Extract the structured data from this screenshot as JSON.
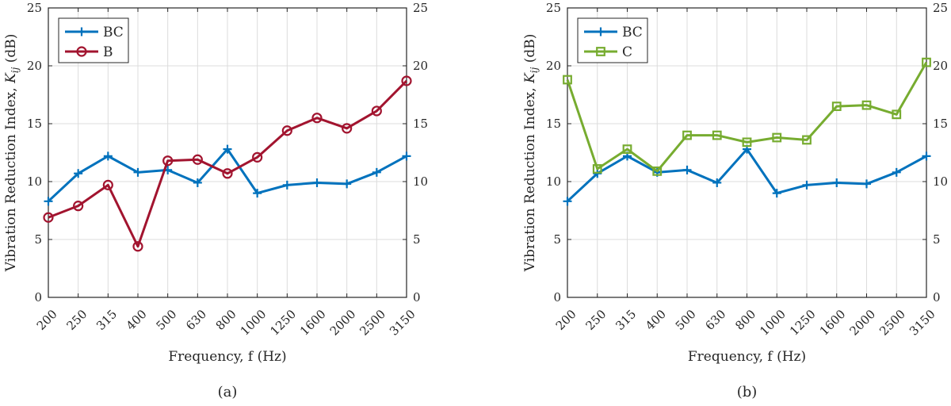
{
  "chart_data": [
    {
      "type": "line",
      "panel_label": "(a)",
      "xlabel": "Frequency, f (Hz)",
      "ylabel_prefix": "Vibration Reduction Index, ",
      "ylabel_symbol": "K",
      "ylabel_subscript": "ij",
      "ylabel_suffix": " (dB)",
      "categories": [
        "200",
        "250",
        "315",
        "400",
        "500",
        "630",
        "800",
        "1000",
        "1250",
        "1600",
        "2000",
        "2500",
        "3150"
      ],
      "ylim": [
        0,
        25
      ],
      "yticks": [
        "0",
        "5",
        "10",
        "15",
        "20",
        "25"
      ],
      "grid": true,
      "secondary_y_axis": true,
      "legend_position": "top-left",
      "series": [
        {
          "name": "BC",
          "marker": "plus",
          "color": "#0072BD",
          "values": [
            8.3,
            10.7,
            12.2,
            10.8,
            11.0,
            9.9,
            12.8,
            9.0,
            9.7,
            9.9,
            9.8,
            10.8,
            12.2
          ]
        },
        {
          "name": "B",
          "marker": "circle",
          "color": "#A2142F",
          "values": [
            6.9,
            7.9,
            9.7,
            4.4,
            11.8,
            11.9,
            10.7,
            12.1,
            14.4,
            15.5,
            14.6,
            16.1,
            18.7
          ]
        }
      ]
    },
    {
      "type": "line",
      "panel_label": "(b)",
      "xlabel": "Frequency, f (Hz)",
      "ylabel_prefix": "Vibration Reduction Index, ",
      "ylabel_symbol": "K",
      "ylabel_subscript": "ij",
      "ylabel_suffix": " (dB)",
      "categories": [
        "200",
        "250",
        "315",
        "400",
        "500",
        "630",
        "800",
        "1000",
        "1250",
        "1600",
        "2000",
        "2500",
        "3150"
      ],
      "ylim": [
        0,
        25
      ],
      "yticks": [
        "0",
        "5",
        "10",
        "15",
        "20",
        "25"
      ],
      "grid": true,
      "secondary_y_axis": true,
      "legend_position": "top-left",
      "series": [
        {
          "name": "BC",
          "marker": "plus",
          "color": "#0072BD",
          "values": [
            8.3,
            10.7,
            12.2,
            10.8,
            11.0,
            9.9,
            12.8,
            9.0,
            9.7,
            9.9,
            9.8,
            10.8,
            12.2
          ]
        },
        {
          "name": "C",
          "marker": "square",
          "color": "#77AC30",
          "values": [
            18.8,
            11.1,
            12.8,
            10.9,
            14.0,
            14.0,
            13.4,
            13.8,
            13.6,
            16.5,
            16.6,
            15.8,
            20.3
          ]
        }
      ]
    }
  ]
}
